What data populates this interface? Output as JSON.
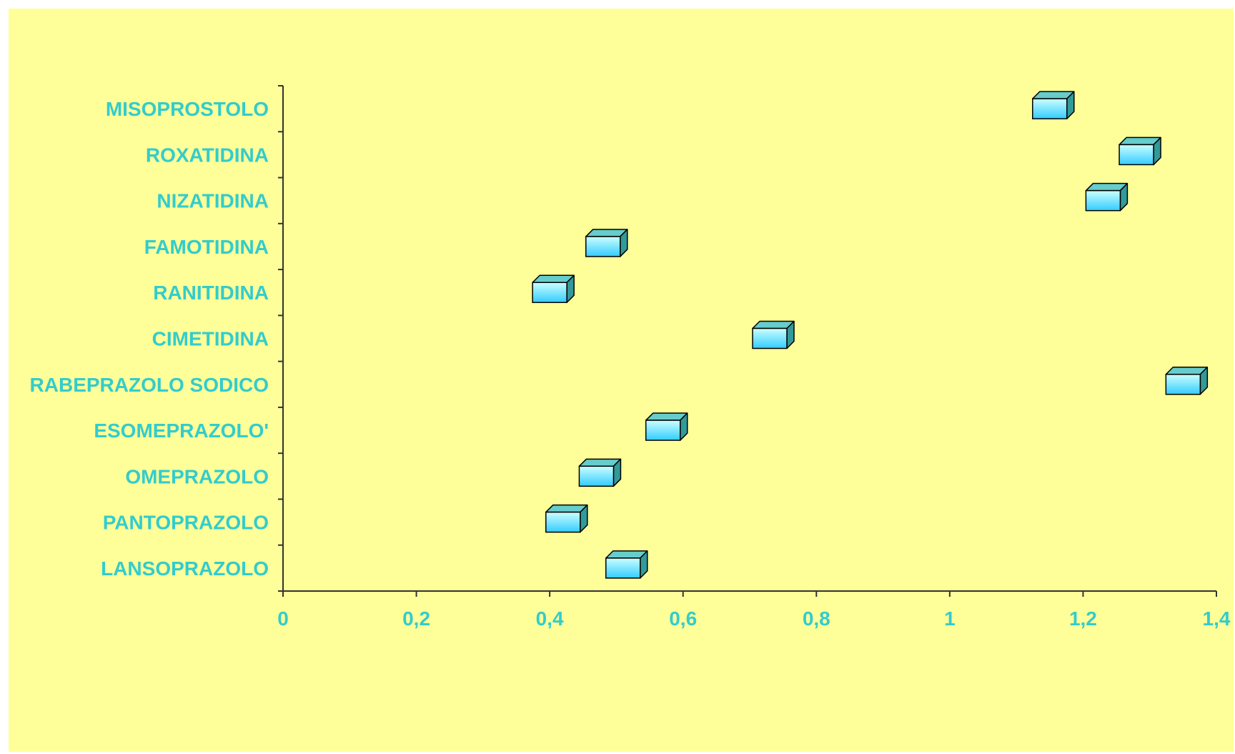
{
  "chart_data": {
    "type": "dot",
    "title": "",
    "xlabel": "",
    "ylabel": "",
    "categories": [
      "MISOPROSTOLO",
      "ROXATIDINA",
      "NIZATIDINA",
      "FAMOTIDINA",
      "RANITIDINA",
      "CIMETIDINA",
      "RABEPRAZOLO SODICO",
      "ESOMEPRAZOLO'",
      "OMEPRAZOLO",
      "PANTOPRAZOLO",
      "LANSOPRAZOLO"
    ],
    "values": [
      1.15,
      1.28,
      1.23,
      0.48,
      0.4,
      0.73,
      1.35,
      0.57,
      0.47,
      0.42,
      0.51
    ],
    "xlim": [
      0,
      1.4
    ],
    "x_ticks": [
      "0",
      "0,2",
      "0,4",
      "0,6",
      "0,8",
      "1",
      "1,2",
      "1,4"
    ],
    "grid": false,
    "legend": "none",
    "marker": "3d-box"
  },
  "colors": {
    "background": "#ffff99",
    "label_text": "#33cccc",
    "axis_line": "#333333",
    "marker_front_top": "#ccffff",
    "marker_front_bottom": "#33ccff",
    "marker_top": "#66cccc",
    "marker_side": "#339999",
    "marker_stroke": "#000000"
  }
}
